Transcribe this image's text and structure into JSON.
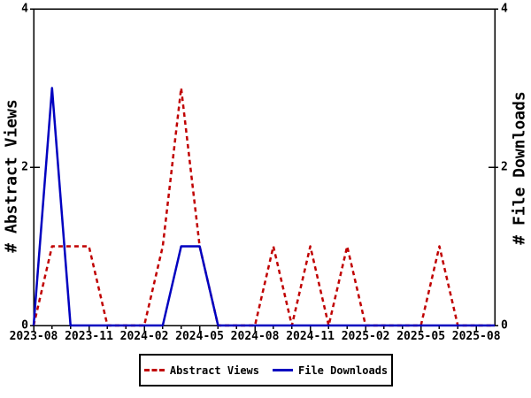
{
  "chart": {
    "left_axis_title": "# Abstract Views",
    "right_axis_title": "# File Downloads",
    "background": "#ffffff",
    "axis_color": "#000000",
    "y_tick_labels": [
      "0",
      "2",
      "4"
    ]
  },
  "chart_data": {
    "type": "line",
    "title": "",
    "x": [
      "2023-08",
      "2023-09",
      "2023-10",
      "2023-11",
      "2023-12",
      "2024-01",
      "2024-02",
      "2024-03",
      "2024-04",
      "2024-05",
      "2024-06",
      "2024-07",
      "2024-08",
      "2024-09",
      "2024-10",
      "2024-11",
      "2024-12",
      "2025-01",
      "2025-02",
      "2025-03",
      "2025-04",
      "2025-05",
      "2025-06",
      "2025-07",
      "2025-08",
      "2025-09"
    ],
    "x_label_every": 3,
    "x_major_tick_labels": [
      "2023-08",
      "2023-11",
      "2024-02",
      "2024-05",
      "2024-08",
      "2024-11",
      "2025-02",
      "2025-05",
      "2025-08"
    ],
    "ylim": [
      0,
      4
    ],
    "y_ticks": [
      0,
      2,
      4
    ],
    "grid": false,
    "legend_position": "bottom-center",
    "series": [
      {
        "name": "Abstract Views",
        "axis": "left",
        "color": "#c00000",
        "style": "dashed",
        "values": [
          0,
          1,
          1,
          1,
          0,
          0,
          0,
          1,
          3,
          1,
          0,
          0,
          0,
          1,
          0,
          1,
          0,
          1,
          0,
          0,
          0,
          0,
          1,
          0,
          0,
          0
        ]
      },
      {
        "name": "File Downloads",
        "axis": "right",
        "color": "#0000c0",
        "style": "solid",
        "values": [
          0,
          3,
          0,
          0,
          0,
          0,
          0,
          0,
          1,
          1,
          0,
          0,
          0,
          0,
          0,
          0,
          0,
          0,
          0,
          0,
          0,
          0,
          0,
          0,
          0,
          0
        ]
      }
    ]
  }
}
